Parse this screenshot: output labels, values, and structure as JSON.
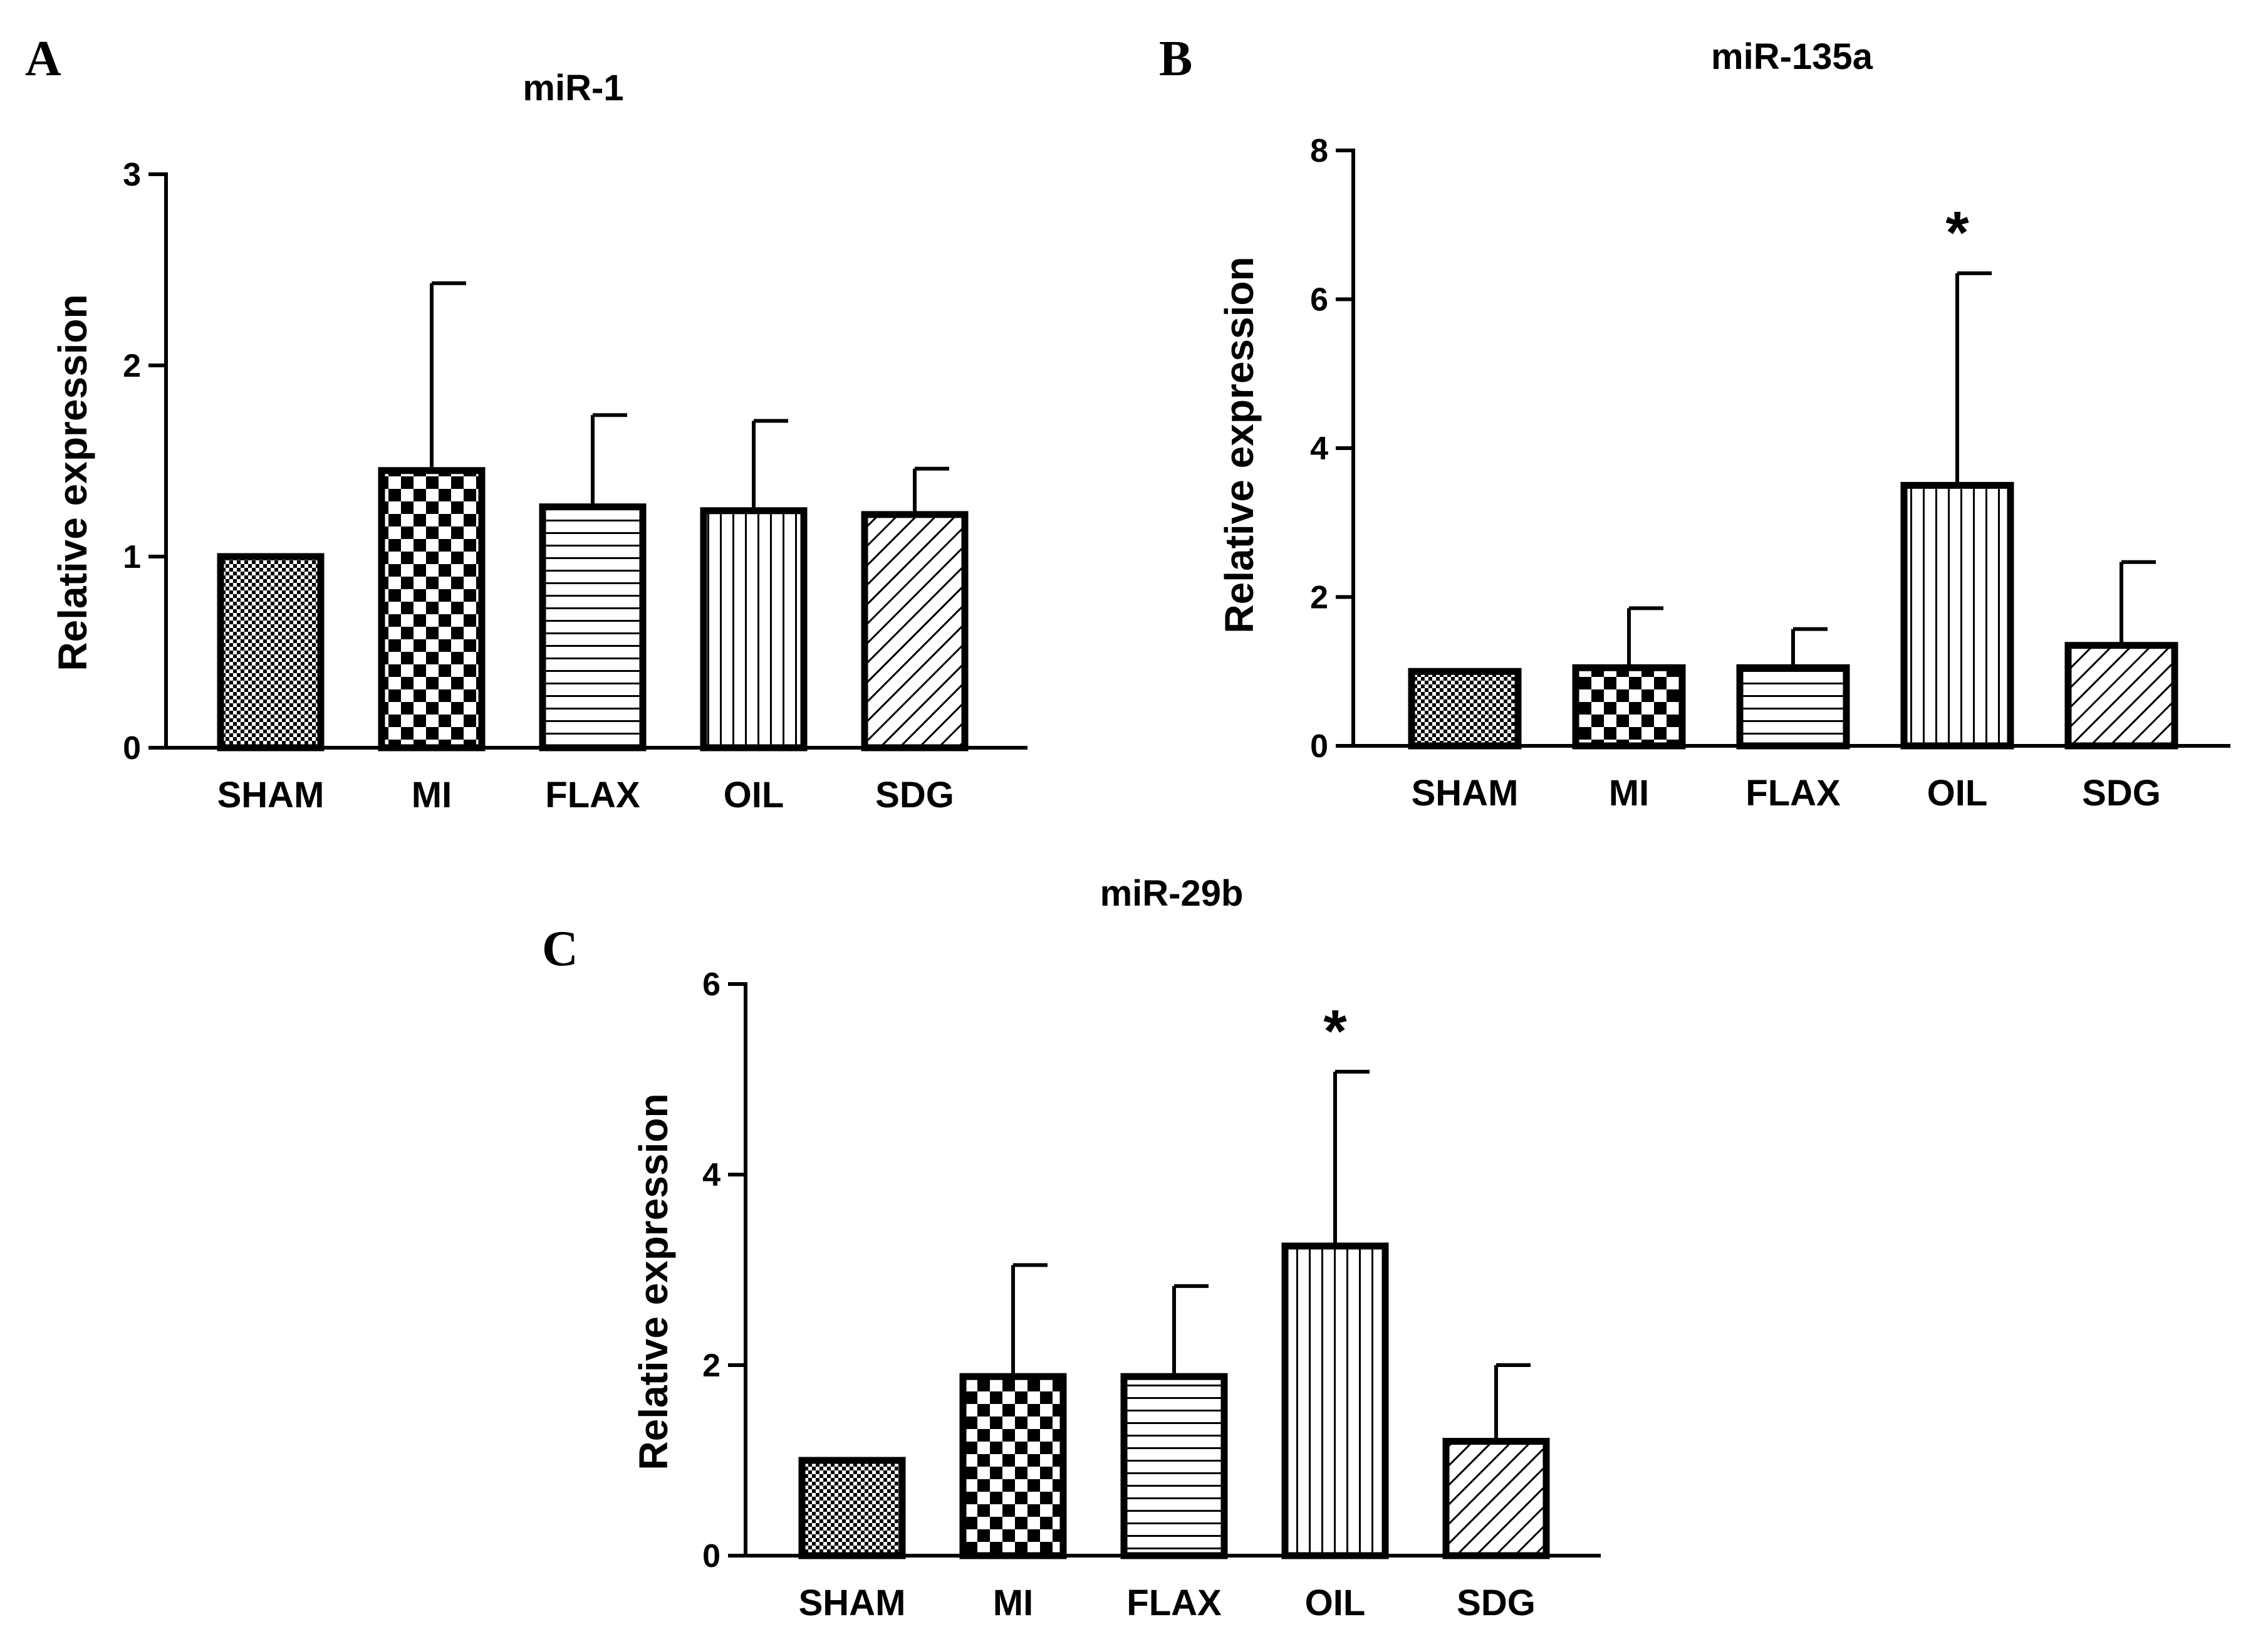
{
  "figure": {
    "y_axis_label": "Relative expression"
  },
  "chart_data": [
    {
      "panel": "A",
      "type": "bar",
      "title": "miR-1",
      "xlabel": "",
      "ylabel": "Relative expression",
      "ylim": [
        0,
        3
      ],
      "yticks": [
        0,
        1,
        2,
        3
      ],
      "categories": [
        "SHAM",
        "MI",
        "FLAX",
        "OIL",
        "SDG"
      ],
      "values": [
        1.0,
        1.45,
        1.26,
        1.24,
        1.22
      ],
      "errors": [
        0.0,
        0.98,
        0.48,
        0.47,
        0.24
      ],
      "annotations": [
        "",
        "",
        "",
        "",
        ""
      ]
    },
    {
      "panel": "B",
      "type": "bar",
      "title": "miR-135a",
      "xlabel": "",
      "ylabel": "Relative expression",
      "ylim": [
        0,
        8
      ],
      "yticks": [
        0,
        2,
        4,
        6,
        8
      ],
      "categories": [
        "SHAM",
        "MI",
        "FLAX",
        "OIL",
        "SDG"
      ],
      "values": [
        1.0,
        1.05,
        1.05,
        3.5,
        1.35
      ],
      "errors": [
        0.0,
        0.8,
        0.52,
        2.85,
        1.12
      ],
      "annotations": [
        "",
        "",
        "",
        "*",
        ""
      ]
    },
    {
      "panel": "C",
      "type": "bar",
      "title": "miR-29b",
      "xlabel": "",
      "ylabel": "Relative expression",
      "ylim": [
        0,
        6
      ],
      "yticks": [
        0,
        2,
        4,
        6
      ],
      "categories": [
        "SHAM",
        "MI",
        "FLAX",
        "OIL",
        "SDG"
      ],
      "values": [
        1.0,
        1.88,
        1.88,
        3.25,
        1.2
      ],
      "errors": [
        0.0,
        1.17,
        0.95,
        1.83,
        0.8
      ],
      "annotations": [
        "",
        "",
        "",
        "*",
        ""
      ]
    }
  ]
}
